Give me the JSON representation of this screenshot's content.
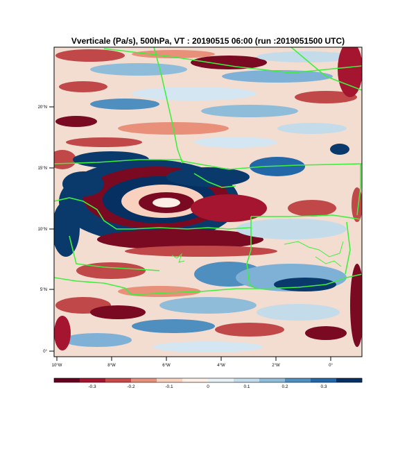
{
  "title": "Vverticale (Pa/s), 500hPa, VT : 20190515  06:00 (run :2019051500 UTC)",
  "axes": {
    "lat_ticks": [
      "0°",
      "5°N",
      "10°N",
      "15°N",
      "20°N"
    ],
    "lon_ticks": [
      "10°W",
      "8°W",
      "6°W",
      "4°W",
      "2°W",
      "0°"
    ]
  },
  "colorbar": {
    "labels": [
      "-0.3",
      "-0.2",
      "-0.1",
      "0",
      "0.1",
      "0.2",
      "0.3"
    ],
    "colors": [
      "#67001f",
      "#a51530",
      "#c94a4a",
      "#e8907a",
      "#f8d2bf",
      "#fdeee6",
      "#e6f0f5",
      "#c4dcea",
      "#8fbcd9",
      "#4f8fc0",
      "#2267a8",
      "#053061"
    ]
  },
  "palette": {
    "strong_neg": "#7a0a22",
    "mid_neg": "#c04848",
    "weak_neg": "#f2c0aa",
    "neutral": "#f7f7f7",
    "weak_pos": "#d4e6f1",
    "mid_pos": "#7fb0d6",
    "strong_pos": "#0a3a6b",
    "border": "#3ef03e"
  }
}
